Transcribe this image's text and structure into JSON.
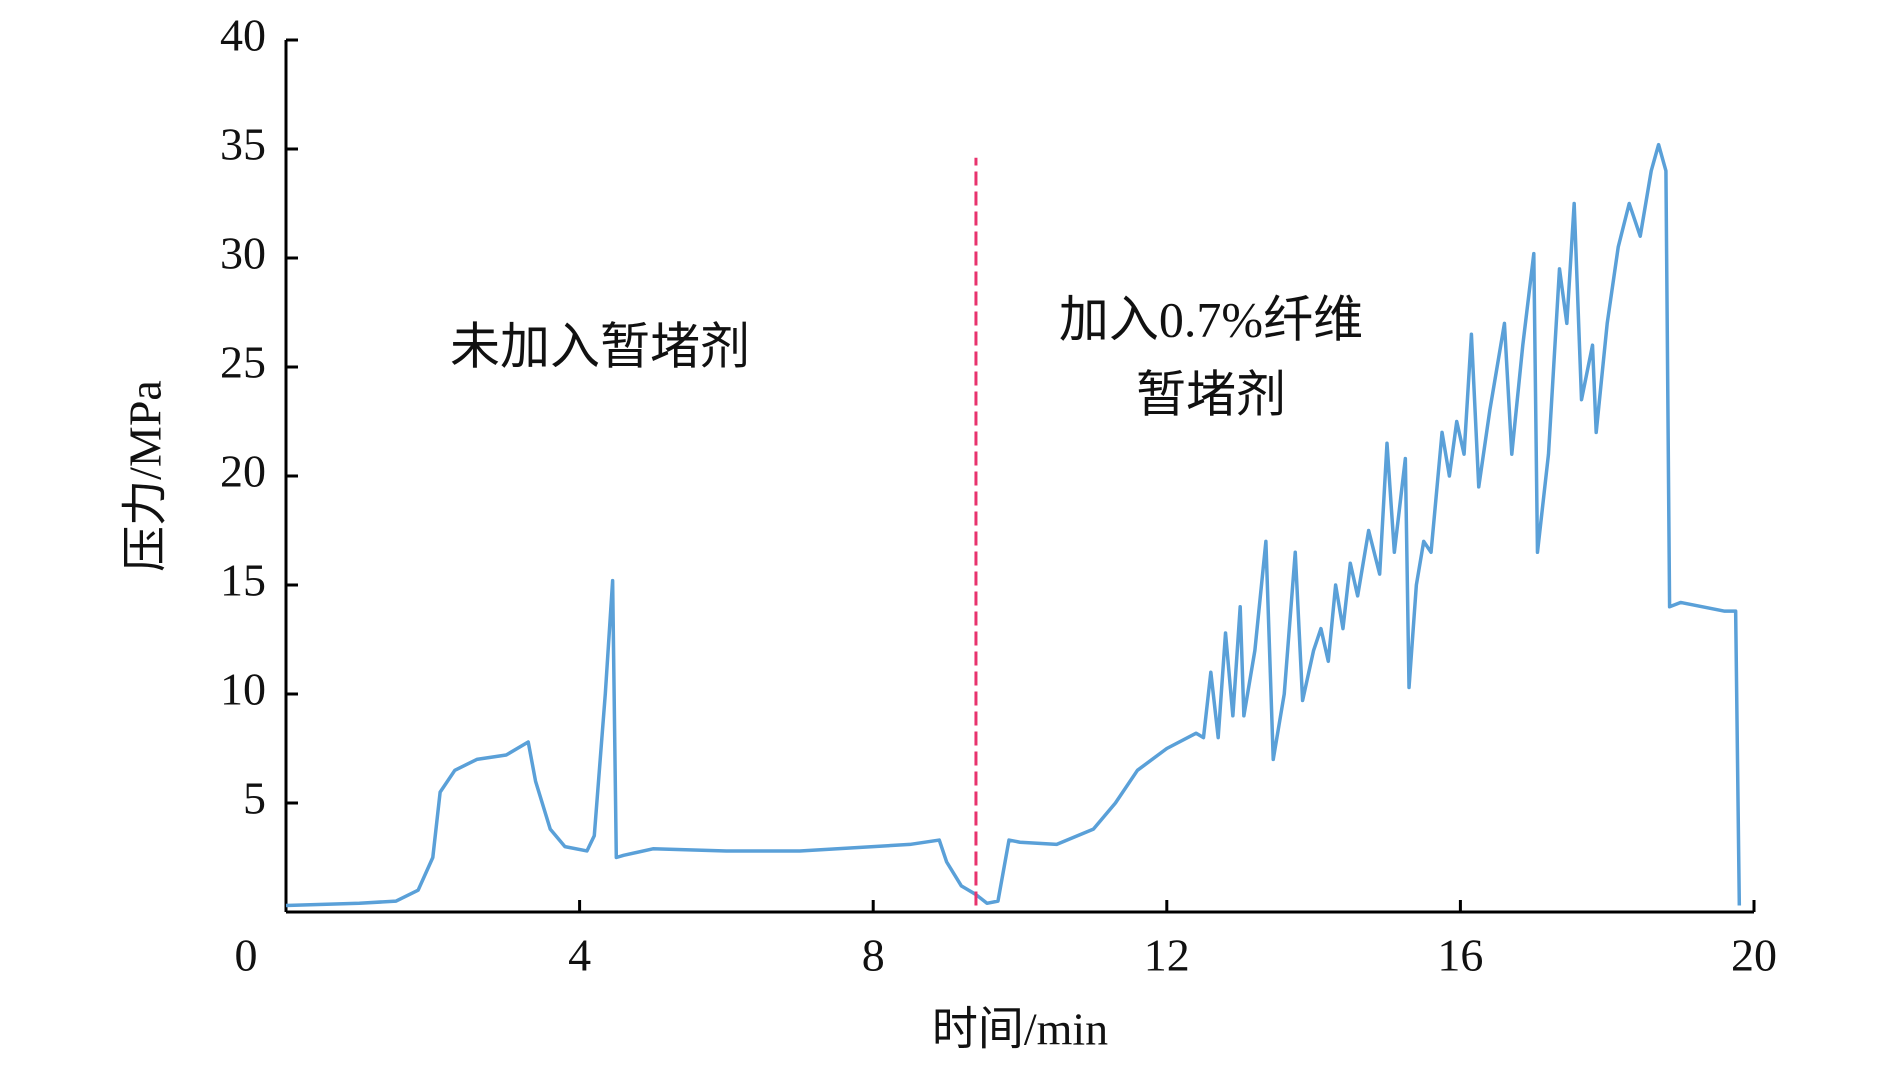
{
  "chart_data": {
    "type": "line",
    "xlabel": "时间/min",
    "ylabel": "压力/MPa",
    "xlim": [
      0,
      20
    ],
    "xticks": [
      0,
      4,
      8,
      12,
      16,
      20
    ],
    "ylim": [
      0,
      40
    ],
    "yticks": [
      5,
      10,
      15,
      20,
      25,
      30,
      35,
      40
    ],
    "grid": false,
    "series": [
      {
        "color": "#5aa0d8",
        "x": [
          0,
          1,
          1.5,
          1.8,
          2.0,
          2.1,
          2.3,
          2.6,
          3.0,
          3.3,
          3.4,
          3.6,
          3.8,
          4.1,
          4.2,
          4.35,
          4.45,
          4.5,
          4.6,
          5,
          6,
          7,
          8,
          8.5,
          8.9,
          9.0,
          9.2,
          9.4,
          9.55,
          9.7,
          9.85,
          10,
          10.5,
          11,
          11.3,
          11.6,
          12,
          12.4,
          12.5,
          12.6,
          12.7,
          12.8,
          12.9,
          13.0,
          13.05,
          13.2,
          13.35,
          13.45,
          13.6,
          13.75,
          13.85,
          14.0,
          14.1,
          14.2,
          14.3,
          14.4,
          14.5,
          14.6,
          14.75,
          14.9,
          15.0,
          15.1,
          15.25,
          15.3,
          15.4,
          15.5,
          15.6,
          15.75,
          15.85,
          15.95,
          16.05,
          16.15,
          16.25,
          16.4,
          16.6,
          16.7,
          16.85,
          17.0,
          17.05,
          17.2,
          17.35,
          17.45,
          17.55,
          17.65,
          17.8,
          17.85,
          18.0,
          18.15,
          18.3,
          18.45,
          18.6,
          18.7,
          18.8,
          18.85,
          19.0,
          19.3,
          19.6,
          19.75,
          19.8
        ],
        "values": [
          0.3,
          0.4,
          0.5,
          1.0,
          2.5,
          5.5,
          6.5,
          7.0,
          7.2,
          7.8,
          6.0,
          3.8,
          3.0,
          2.8,
          3.5,
          10,
          15.2,
          2.5,
          2.6,
          2.9,
          2.8,
          2.8,
          3.0,
          3.1,
          3.3,
          2.3,
          1.2,
          0.8,
          0.4,
          0.5,
          3.3,
          3.2,
          3.1,
          3.8,
          5,
          6.5,
          7.5,
          8.2,
          8,
          11,
          8,
          12.8,
          9,
          14,
          9,
          12,
          17,
          7,
          10,
          16.5,
          9.7,
          12,
          13,
          11.5,
          15,
          13,
          16,
          14.5,
          17.5,
          15.5,
          21.5,
          16.5,
          20.8,
          10.3,
          15,
          17,
          16.5,
          22,
          20,
          22.5,
          21,
          26.5,
          19.5,
          23,
          27,
          21,
          26,
          30.2,
          16.5,
          21,
          29.5,
          27,
          32.5,
          23.5,
          26,
          22,
          27,
          30.5,
          32.5,
          31,
          34,
          35.2,
          34,
          14,
          14.2,
          14,
          13.8,
          13.8,
          0.3
        ]
      }
    ],
    "divider": {
      "x": 9.4,
      "y": [
        0.3,
        34.6
      ],
      "color": "#e8336d"
    },
    "annotations": [
      "未加入暂堵剂",
      "加入0.7%纤维",
      "暂堵剂"
    ]
  }
}
